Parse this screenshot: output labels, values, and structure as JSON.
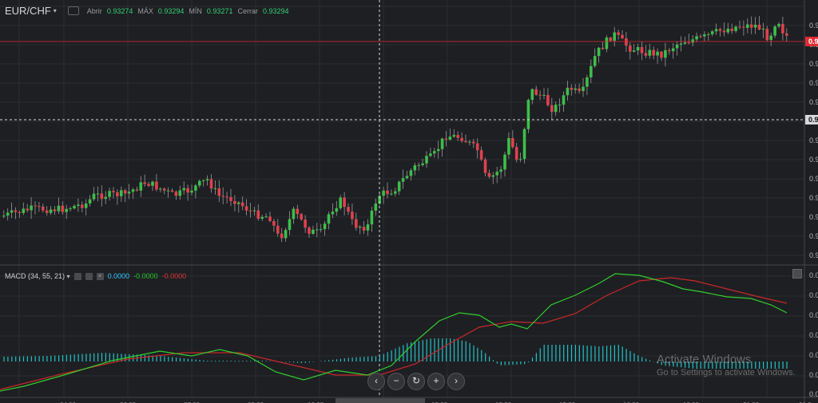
{
  "symbol": {
    "name": "EUR/CHF",
    "caret": "▾"
  },
  "ohlc": {
    "open_label": "Abrir",
    "open": "0.93274",
    "high_label": "MÁX",
    "high": "0.93294",
    "low_label": "MÍN",
    "low": "0.93271",
    "close_label": "Cerrar",
    "close": "0.93294"
  },
  "price_axis": {
    "labels": [
      "0.9",
      "0.9",
      "0.9",
      "0.9",
      "0.9",
      "0.9",
      "0.9",
      "0.9",
      "0.9",
      "0.9",
      "0.9",
      "0.9",
      "0.9"
    ],
    "current_label": "0.9",
    "crosshair_label": "0.9"
  },
  "macd": {
    "title": "MACD (34, 55, 21)",
    "caret": "▾",
    "value1": "0.0000",
    "value2": "-0.0000",
    "value3": "-0.0000",
    "axis_labels": [
      "0.0",
      "0.0",
      "0.0",
      "0.0",
      "0.0",
      "0.0",
      "0.0"
    ]
  },
  "time_axis": {
    "labels": [
      "04:00",
      "06:00",
      "07:00",
      "09:00",
      "10:00",
      "12:00",
      "13:00",
      "15:00",
      "16:00",
      "18:00",
      "21:00",
      "01:0"
    ]
  },
  "colors": {
    "bull": "#3cbf4a",
    "bear": "#e0414e",
    "macd_line": "#2fcf2f",
    "signal_line": "#c9272b",
    "histogram": "#1ec3c9",
    "accent_red": "#e02b33"
  },
  "nav": {
    "left": "‹",
    "zoom_out": "−",
    "reset": "↻",
    "zoom_in": "+",
    "right": "›"
  },
  "watermark": {
    "line1": "Activate Windows",
    "line2": "Go to Settings to activate Windows."
  }
}
